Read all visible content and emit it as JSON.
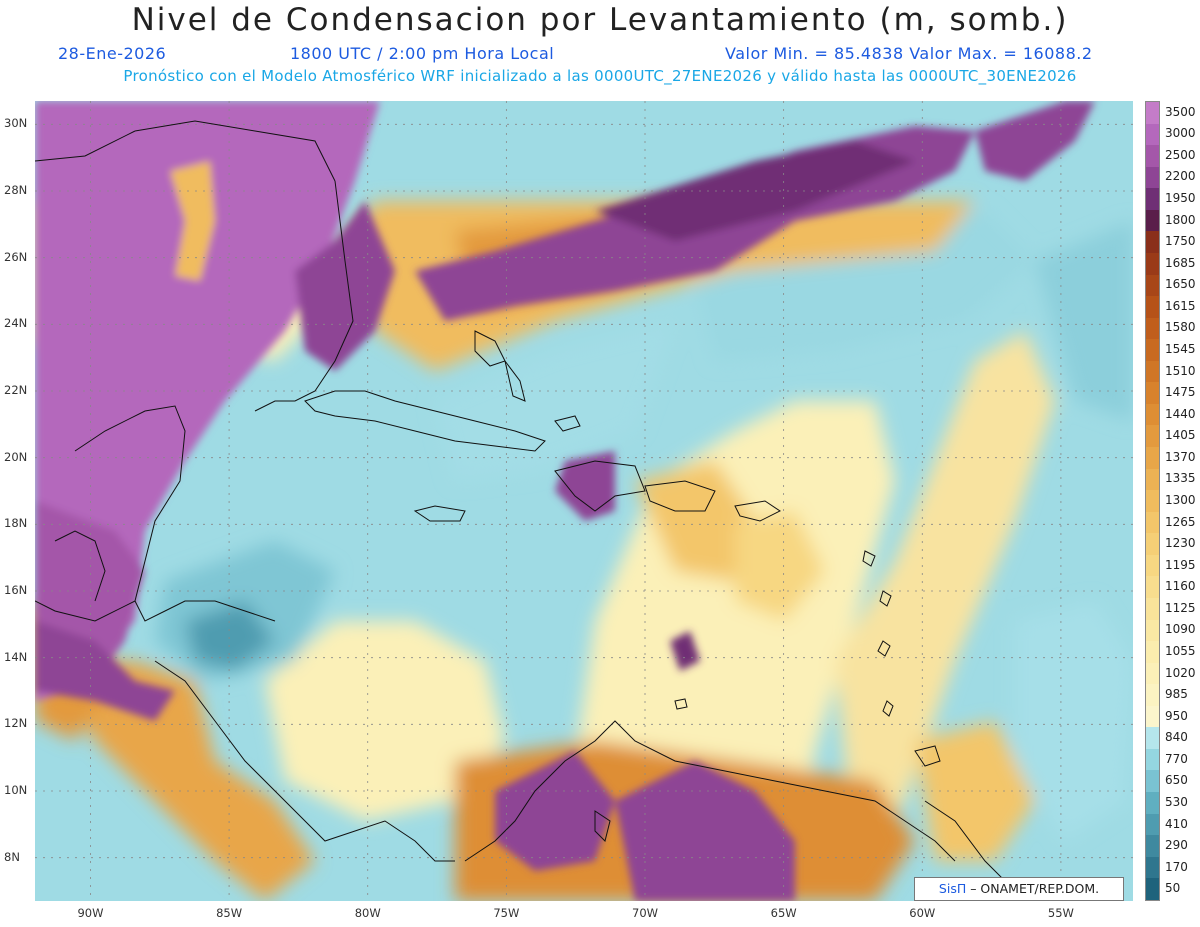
{
  "header": {
    "title": "Nivel de Condensacion por Levantamiento (m, somb.)",
    "date": "28-Ene-2026",
    "time": "1800 UTC / 2:00 pm Hora Local",
    "minmax": "Valor Min. = 85.4838   Valor Max. = 16088.2",
    "model_info": "Pronóstico con el Modelo Atmosférico WRF inicializado a las 0000UTC_27ENE2026 y válido hasta las  0000UTC_30ENE2026"
  },
  "map": {
    "lat_labels": [
      "30N",
      "28N",
      "26N",
      "24N",
      "22N",
      "20N",
      "18N",
      "16N",
      "14N",
      "12N",
      "10N",
      "8N"
    ],
    "lat_values": [
      30,
      28,
      26,
      24,
      22,
      20,
      18,
      16,
      14,
      12,
      10,
      8
    ],
    "lon_labels": [
      "90W",
      "85W",
      "80W",
      "75W",
      "70W",
      "65W",
      "60W",
      "55W"
    ],
    "lon_values": [
      -90,
      -85,
      -80,
      -75,
      -70,
      -65,
      -60,
      -55
    ],
    "lon_range": [
      -92,
      -52.4
    ],
    "lat_range": [
      6.7,
      30.7
    ]
  },
  "colorbar": {
    "labels": [
      "3500",
      "3000",
      "2500",
      "2200",
      "1950",
      "1800",
      "1750",
      "1685",
      "1650",
      "1615",
      "1580",
      "1545",
      "1510",
      "1475",
      "1440",
      "1405",
      "1370",
      "1335",
      "1300",
      "1265",
      "1230",
      "1195",
      "1160",
      "1125",
      "1090",
      "1055",
      "1020",
      "985",
      "950",
      "840",
      "770",
      "650",
      "530",
      "410",
      "290",
      "170",
      "50"
    ],
    "colors": [
      "#c47cc8",
      "#b468bc",
      "#a457a9",
      "#8e4595",
      "#6f2f75",
      "#5a1e4a",
      "#8a2f1a",
      "#9a3a18",
      "#a84618",
      "#b65218",
      "#c05e1c",
      "#c86a20",
      "#d07626",
      "#d8822c",
      "#de8e34",
      "#e39a3e",
      "#e8a648",
      "#ecb254",
      "#f0bc5e",
      "#f3c66a",
      "#f5cf76",
      "#f7d782",
      "#f8dd8e",
      "#f9e39a",
      "#fae8a4",
      "#fbedae",
      "#fbf0b8",
      "#fbf3c2",
      "#fbf5cc",
      "#b5e6ec",
      "#94d6e0",
      "#7ac3d2",
      "#60afc0",
      "#4f9cb0",
      "#3f899f",
      "#2f768e",
      "#1f637c"
    ]
  },
  "credit": {
    "brand": "SisΠ",
    "text": " – ONAMET/REP.DOM."
  }
}
